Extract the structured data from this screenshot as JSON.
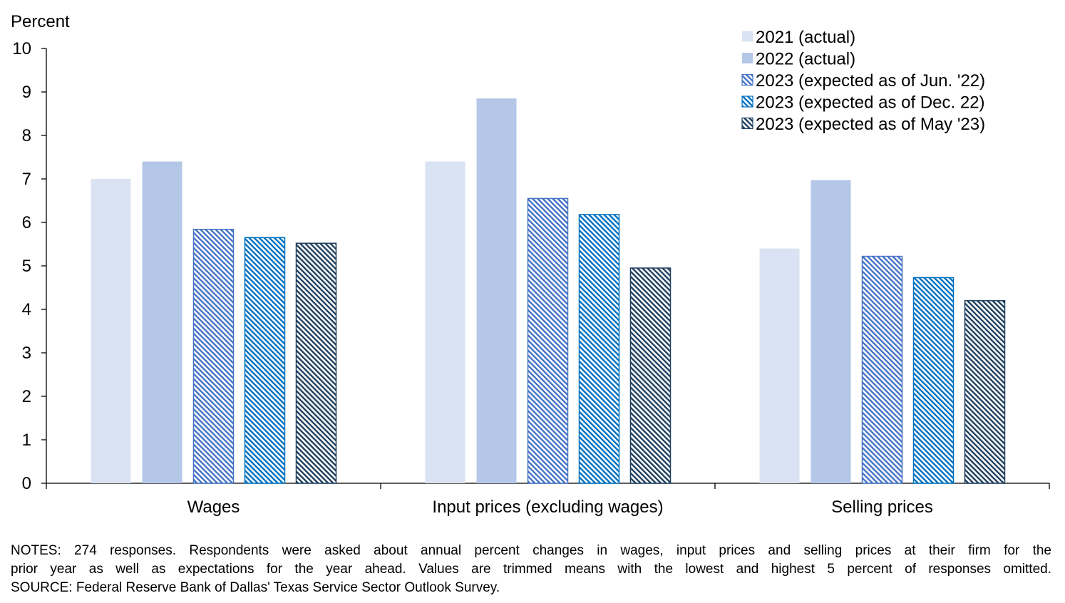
{
  "chart_data": {
    "type": "bar",
    "ylabel": "Percent",
    "ylim": [
      0,
      10
    ],
    "yticks": [
      0,
      1,
      2,
      3,
      4,
      5,
      6,
      7,
      8,
      9,
      10
    ],
    "categories": [
      "Wages",
      "Input prices (excluding wages)",
      "Selling prices"
    ],
    "series": [
      {
        "name": "2021 (actual)",
        "values": [
          7.0,
          7.4,
          5.4
        ],
        "color": "#dae3f3",
        "pattern": "solid"
      },
      {
        "name": "2022 (actual)",
        "values": [
          7.4,
          8.85,
          6.97
        ],
        "color": "#b4c7e7",
        "pattern": "solid"
      },
      {
        "name": "2023 (expected as of Jun. '22)",
        "values": [
          5.84,
          6.55,
          5.22
        ],
        "color": "#4472c4",
        "pattern": "hatch"
      },
      {
        "name": "2023 (expected as of Dec. 22)",
        "values": [
          5.65,
          6.18,
          4.73
        ],
        "color": "#0070c0",
        "pattern": "hatch"
      },
      {
        "name": "2023 (expected as of May '23)",
        "values": [
          5.52,
          4.95,
          4.2
        ],
        "color": "#1f3f5f",
        "pattern": "hatch"
      }
    ],
    "legend_position": "top-right",
    "grid": false
  },
  "notes": {
    "line1": "NOTES: 274 responses. Respondents were asked about annual percent changes in wages, input prices and selling prices at their firm for the",
    "line2": "prior year as well as expectations for the year ahead. Values are trimmed means with the lowest and highest 5 percent of responses omitted.",
    "source": "SOURCE: Federal Reserve Bank of Dallas' Texas Service Sector Outlook Survey."
  }
}
